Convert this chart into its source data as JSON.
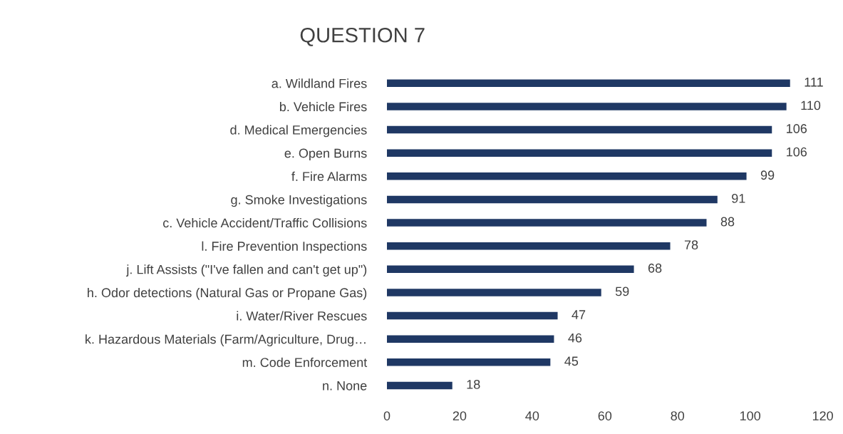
{
  "chart_data": {
    "type": "bar",
    "orientation": "horizontal",
    "title": "QUESTION 7",
    "categories": [
      "a. Wildland Fires",
      "b. Vehicle Fires",
      "d. Medical Emergencies",
      "e. Open Burns",
      "f. Fire Alarms",
      "g. Smoke Investigations",
      "c. Vehicle Accident/Traffic Collisions",
      "l. Fire Prevention Inspections",
      "j. Lift Assists (\"I've fallen and can't get up\")",
      "h. Odor detections (Natural Gas or Propane Gas)",
      "i. Water/River Rescues",
      "k. Hazardous Materials (Farm/Agriculture, Drug…",
      "m. Code Enforcement",
      "n. None"
    ],
    "values": [
      111,
      110,
      106,
      106,
      99,
      91,
      88,
      78,
      68,
      59,
      47,
      46,
      45,
      18
    ],
    "color": "#1f3864",
    "xlim": [
      0,
      120
    ],
    "xticks": [
      0,
      20,
      40,
      60,
      80,
      100,
      120
    ],
    "grid": false,
    "legend": false,
    "data_labels": true
  }
}
